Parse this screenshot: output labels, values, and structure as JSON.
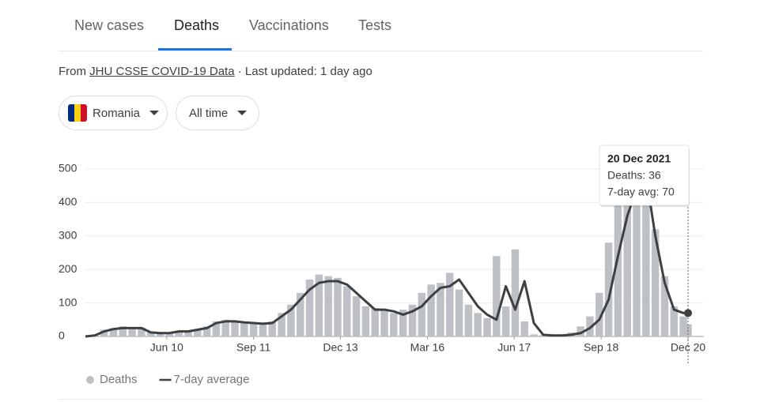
{
  "tabs": [
    "New cases",
    "Deaths",
    "Vaccinations",
    "Tests"
  ],
  "source": {
    "prefix": "From",
    "link": "JHU CSSE COVID-19 Data",
    "suffix": "· Last updated: 1 day ago"
  },
  "filters": [
    "Romania",
    "All time"
  ],
  "chart_data": {
    "type": "combo",
    "x": [
      0,
      10,
      20,
      30,
      40,
      50,
      60,
      70,
      80,
      90,
      100,
      110,
      120,
      130,
      140,
      150,
      160,
      170,
      180,
      190,
      200,
      210,
      220,
      230,
      240,
      250,
      260,
      270,
      280,
      290,
      300,
      310,
      320,
      330,
      340,
      350,
      360,
      370,
      380,
      390,
      400,
      410,
      420,
      430,
      440,
      450,
      460,
      470,
      480,
      490,
      500,
      510,
      520,
      530,
      540,
      550,
      560,
      570,
      580,
      590,
      600,
      610,
      620,
      630,
      640,
      645
    ],
    "xlim": [
      0,
      645
    ],
    "xticks": [
      {
        "value": 87,
        "label": "Jun 10"
      },
      {
        "value": 180,
        "label": "Sep 11"
      },
      {
        "value": 273,
        "label": "Dec 13"
      },
      {
        "value": 366,
        "label": "Mar 16"
      },
      {
        "value": 459,
        "label": "Jun 17"
      },
      {
        "value": 552,
        "label": "Sep 18"
      },
      {
        "value": 645,
        "label": "Dec 20"
      }
    ],
    "ylim": [
      0,
      500
    ],
    "yticks": [
      0,
      100,
      200,
      300,
      400,
      500
    ],
    "grid": true,
    "series": [
      {
        "name": "Deaths",
        "kind": "bar",
        "color": "#bdc1c6",
        "values": [
          0,
          5,
          20,
          25,
          30,
          28,
          27,
          15,
          12,
          13,
          17,
          18,
          22,
          30,
          45,
          50,
          48,
          44,
          42,
          40,
          45,
          70,
          95,
          130,
          170,
          185,
          180,
          175,
          150,
          120,
          90,
          85,
          80,
          70,
          80,
          95,
          130,
          155,
          160,
          190,
          140,
          95,
          70,
          55,
          240,
          90,
          260,
          45,
          6,
          4,
          3,
          6,
          12,
          30,
          60,
          130,
          280,
          400,
          460,
          480,
          490,
          320,
          180,
          90,
          60,
          36
        ]
      },
      {
        "name": "7-day average",
        "kind": "line",
        "color": "#3c4043",
        "values": [
          0,
          3,
          15,
          22,
          25,
          25,
          25,
          12,
          10,
          10,
          15,
          15,
          20,
          25,
          40,
          45,
          45,
          42,
          40,
          38,
          40,
          60,
          80,
          110,
          140,
          160,
          165,
          165,
          155,
          130,
          105,
          80,
          80,
          75,
          65,
          75,
          90,
          120,
          145,
          150,
          170,
          130,
          90,
          65,
          50,
          150,
          80,
          165,
          40,
          5,
          3,
          3,
          5,
          10,
          25,
          50,
          110,
          240,
          360,
          440,
          480,
          300,
          160,
          80,
          70,
          70
        ]
      }
    ],
    "tooltip": {
      "title": "20 Dec 2021",
      "lines": [
        "Deaths: 36",
        "7-day avg: 70"
      ]
    }
  }
}
